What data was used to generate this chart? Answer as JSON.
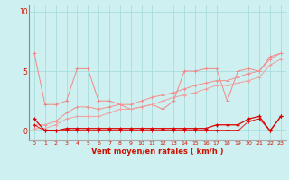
{
  "x": [
    0,
    1,
    2,
    3,
    4,
    5,
    6,
    7,
    8,
    9,
    10,
    11,
    12,
    13,
    14,
    15,
    16,
    17,
    18,
    19,
    20,
    21,
    22,
    23
  ],
  "line1_y": [
    6.5,
    2.2,
    2.2,
    2.5,
    5.2,
    5.2,
    2.5,
    2.5,
    2.2,
    1.8,
    2.0,
    2.2,
    1.8,
    2.5,
    5.0,
    5.0,
    5.2,
    5.2,
    2.5,
    5.0,
    5.2,
    5.0,
    6.2,
    6.5
  ],
  "line2_y": [
    0.5,
    0.5,
    0.8,
    1.5,
    2.0,
    2.0,
    1.8,
    2.0,
    2.2,
    2.2,
    2.5,
    2.8,
    3.0,
    3.2,
    3.5,
    3.8,
    4.0,
    4.2,
    4.2,
    4.5,
    4.8,
    5.0,
    6.0,
    6.5
  ],
  "line3_y": [
    0.2,
    0.2,
    0.5,
    1.0,
    1.2,
    1.2,
    1.2,
    1.5,
    1.8,
    1.8,
    2.0,
    2.2,
    2.5,
    2.8,
    3.0,
    3.2,
    3.5,
    3.8,
    3.8,
    4.0,
    4.2,
    4.5,
    5.5,
    6.0
  ],
  "line4_y": [
    1.0,
    0.0,
    0.0,
    0.2,
    0.2,
    0.2,
    0.2,
    0.2,
    0.2,
    0.2,
    0.2,
    0.2,
    0.2,
    0.2,
    0.2,
    0.2,
    0.2,
    0.5,
    0.5,
    0.5,
    1.0,
    1.2,
    0.0,
    1.2
  ],
  "line5_y": [
    0.5,
    0.0,
    0.0,
    0.0,
    0.0,
    0.0,
    0.0,
    0.0,
    0.0,
    0.0,
    0.0,
    0.0,
    0.0,
    0.0,
    0.0,
    0.0,
    0.0,
    0.0,
    0.0,
    0.0,
    0.8,
    1.0,
    0.0,
    1.2
  ],
  "bg_color": "#cef0f0",
  "grid_color": "#aadddd",
  "line1_color": "#f08888",
  "line2_color": "#f09090",
  "line3_color": "#f0a0a0",
  "line4_color": "#dd0000",
  "line5_color": "#dd0000",
  "xlabel": "Vent moyen/en rafales ( km/h )",
  "ylim": [
    -0.8,
    10.5
  ],
  "xlim": [
    -0.5,
    23.5
  ],
  "yticks": [
    0,
    5,
    10
  ],
  "xticks": [
    0,
    1,
    2,
    3,
    4,
    5,
    6,
    7,
    8,
    9,
    10,
    11,
    12,
    13,
    14,
    15,
    16,
    17,
    18,
    19,
    20,
    21,
    22,
    23
  ]
}
